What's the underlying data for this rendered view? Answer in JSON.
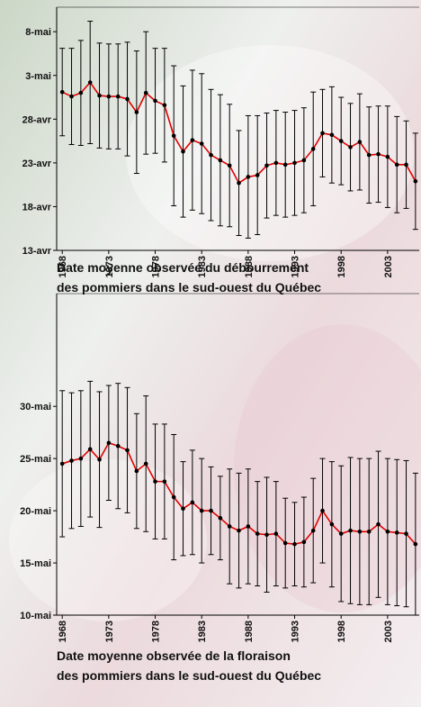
{
  "chart_data": [
    {
      "type": "line",
      "title": [
        "Date moyenne observée du débourrement",
        "des pommiers dans le sud-ouest du Québec"
      ],
      "x": [
        1968,
        1969,
        1970,
        1971,
        1972,
        1973,
        1974,
        1975,
        1976,
        1977,
        1978,
        1979,
        1980,
        1981,
        1982,
        1983,
        1984,
        1985,
        1986,
        1987,
        1988,
        1989,
        1990,
        1991,
        1992,
        1993,
        1994,
        1995,
        1996,
        1997,
        1998,
        1999,
        2000,
        2001,
        2002,
        2003,
        2004,
        2005,
        2006
      ],
      "values": [
        121.1,
        120.6,
        121.0,
        122.2,
        120.7,
        120.6,
        120.6,
        120.3,
        118.8,
        121.0,
        120.1,
        119.6,
        116.1,
        114.3,
        115.6,
        115.2,
        113.9,
        113.3,
        112.7,
        110.7,
        111.4,
        111.6,
        112.7,
        113.0,
        112.8,
        113.0,
        113.3,
        114.6,
        116.4,
        116.2,
        115.5,
        114.8,
        115.4,
        113.9,
        114.0,
        113.7,
        112.8,
        112.8,
        110.9
      ],
      "errors": [
        5.0,
        5.5,
        6.0,
        7.0,
        6.0,
        6.0,
        6.0,
        6.5,
        7.0,
        7.0,
        6.0,
        6.5,
        8.0,
        7.5,
        8.0,
        8.0,
        7.5,
        7.5,
        7.0,
        6.0,
        7.0,
        6.8,
        6.0,
        6.0,
        6.0,
        6.0,
        6.0,
        6.5,
        5.0,
        5.5,
        5.0,
        5.0,
        5.5,
        5.5,
        5.5,
        5.8,
        5.5,
        5.0,
        5.5
      ],
      "line_color": "#e00000",
      "marker_color": "#000000",
      "error_color": "#000000",
      "xlim": [
        1967.4,
        2006.4
      ],
      "ylim": [
        103,
        130.8
      ],
      "xticks": [
        1968,
        1973,
        1978,
        1983,
        1988,
        1993,
        1998,
        2003
      ],
      "yticks": [
        {
          "value": 103,
          "label": "13-avr"
        },
        {
          "value": 108,
          "label": "18-avr"
        },
        {
          "value": 113,
          "label": "23-avr"
        },
        {
          "value": 118,
          "label": "28-avr"
        },
        {
          "value": 123,
          "label": "3-mai"
        },
        {
          "value": 128,
          "label": "8-mai"
        }
      ]
    },
    {
      "type": "line",
      "title": [
        "Date moyenne observée de la floraison",
        "des pommiers dans le sud-ouest du Québec"
      ],
      "x": [
        1968,
        1969,
        1970,
        1971,
        1972,
        1973,
        1974,
        1975,
        1976,
        1977,
        1978,
        1979,
        1980,
        1981,
        1982,
        1983,
        1984,
        1985,
        1986,
        1987,
        1988,
        1989,
        1990,
        1991,
        1992,
        1993,
        1994,
        1995,
        1996,
        1997,
        1998,
        1999,
        2000,
        2001,
        2002,
        2003,
        2004,
        2005,
        2006
      ],
      "values": [
        144.5,
        144.8,
        145.0,
        145.9,
        144.9,
        146.5,
        146.2,
        145.8,
        143.8,
        144.5,
        142.8,
        142.8,
        141.3,
        140.2,
        140.8,
        140.0,
        140.0,
        139.3,
        138.5,
        138.1,
        138.5,
        137.8,
        137.7,
        137.8,
        136.9,
        136.8,
        137.0,
        138.1,
        140.0,
        138.7,
        137.8,
        138.1,
        138.0,
        138.0,
        138.7,
        138.0,
        137.9,
        137.8,
        136.8
      ],
      "errors": [
        7.0,
        6.5,
        6.5,
        6.5,
        6.5,
        5.5,
        6.0,
        6.0,
        5.5,
        6.5,
        5.5,
        5.5,
        6.0,
        4.5,
        5.0,
        5.0,
        4.2,
        4.0,
        5.5,
        5.5,
        5.5,
        5.0,
        5.5,
        5.0,
        4.3,
        4.0,
        4.3,
        5.0,
        5.0,
        6.0,
        6.5,
        7.0,
        7.0,
        7.0,
        7.0,
        7.0,
        7.0,
        7.0,
        6.8
      ],
      "line_color": "#e00000",
      "marker_color": "#000000",
      "error_color": "#000000",
      "xlim": [
        1967.4,
        2006.4
      ],
      "ylim": [
        130,
        160.8
      ],
      "xticks": [
        1968,
        1973,
        1978,
        1983,
        1988,
        1993,
        1998,
        2003
      ],
      "yticks": [
        {
          "value": 130,
          "label": "10-mai"
        },
        {
          "value": 135,
          "label": "15-mai"
        },
        {
          "value": 140,
          "label": "20-mai"
        },
        {
          "value": 145,
          "label": "25-mai"
        },
        {
          "value": 150,
          "label": "30-mai"
        }
      ]
    }
  ]
}
